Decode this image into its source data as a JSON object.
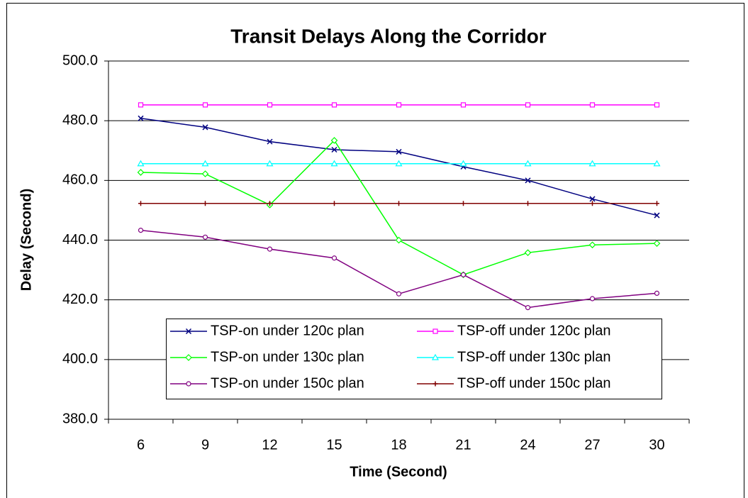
{
  "chart_data": {
    "type": "line",
    "title": "Transit Delays Along the Corridor",
    "xlabel": "Time (Second)",
    "ylabel": "Delay (Second)",
    "categories": [
      "6",
      "9",
      "12",
      "15",
      "18",
      "21",
      "24",
      "27",
      "30"
    ],
    "ylim": [
      380,
      500
    ],
    "yticks": [
      {
        "value": 380,
        "label": "380.0"
      },
      {
        "value": 400,
        "label": "400.0"
      },
      {
        "value": 420,
        "label": "420.0"
      },
      {
        "value": 440,
        "label": "440.0"
      },
      {
        "value": 460,
        "label": "460.0"
      },
      {
        "value": 480,
        "label": "480.0"
      },
      {
        "value": 500,
        "label": "500.0"
      }
    ],
    "grid": true,
    "series": [
      {
        "name": "TSP-on under 120c plan",
        "color": "#000080",
        "marker": "x",
        "values": [
          480.8,
          477.8,
          473.0,
          470.3,
          469.6,
          464.6,
          460.0,
          453.8,
          448.3
        ]
      },
      {
        "name": "TSP-off under 120c plan",
        "color": "#ff00ff",
        "marker": "square",
        "values": [
          485.3,
          485.3,
          485.3,
          485.3,
          485.3,
          485.3,
          485.3,
          485.3,
          485.3
        ]
      },
      {
        "name": "TSP-on under 130c plan",
        "color": "#00ff00",
        "marker": "diamond",
        "values": [
          462.7,
          462.2,
          451.8,
          473.4,
          440.0,
          428.4,
          435.8,
          438.4,
          438.9
        ]
      },
      {
        "name": "TSP-off under 130c plan",
        "color": "#00ffff",
        "marker": "triangle",
        "values": [
          465.6,
          465.6,
          465.6,
          465.6,
          465.6,
          465.6,
          465.6,
          465.6,
          465.6
        ]
      },
      {
        "name": "TSP-on under 150c plan",
        "color": "#800080",
        "marker": "circle",
        "values": [
          443.3,
          441.0,
          437.0,
          434.0,
          422.0,
          428.4,
          417.4,
          420.4,
          422.2
        ]
      },
      {
        "name": "TSP-off under 150c plan",
        "color": "#800000",
        "marker": "plus",
        "values": [
          452.3,
          452.3,
          452.3,
          452.3,
          452.3,
          452.3,
          452.3,
          452.3,
          452.3
        ]
      }
    ]
  }
}
